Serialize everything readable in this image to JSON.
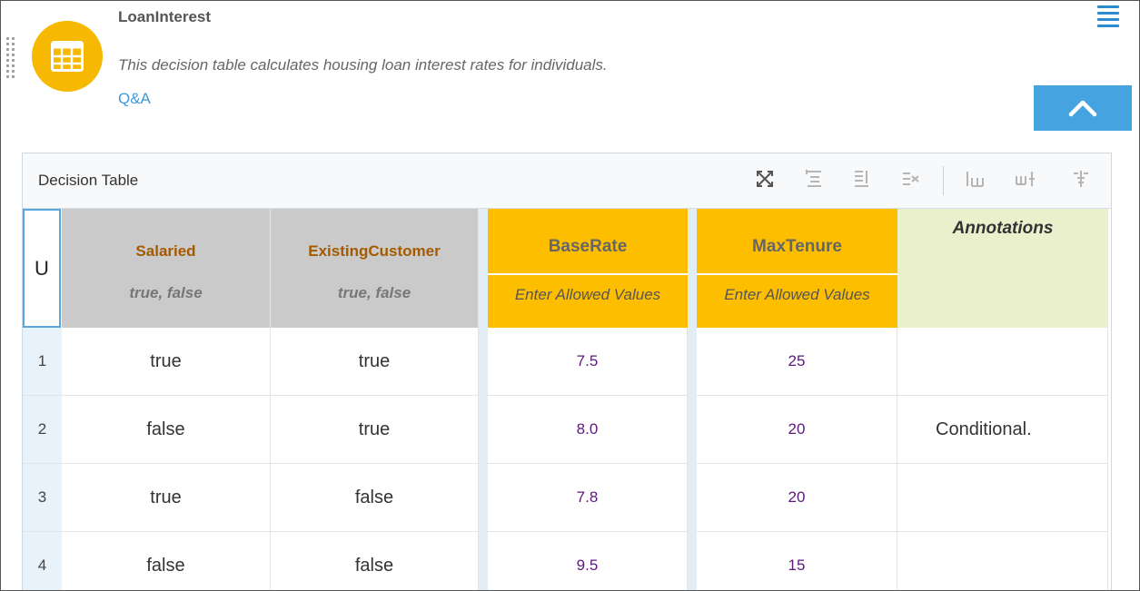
{
  "header": {
    "title": "LoanInterest",
    "description": "This decision table calculates housing loan interest rates for individuals.",
    "link": "Q&A"
  },
  "panel": {
    "title": "Decision Table",
    "toolbar_icons": [
      "fullscreen-icon",
      "add-rule-above-icon",
      "add-rule-below-icon",
      "delete-rule-icon",
      "add-column-left-icon",
      "add-column-right-icon",
      "delete-column-icon"
    ]
  },
  "table": {
    "hit_policy": "U",
    "inputs": [
      {
        "name": "Salaried",
        "values": "true, false"
      },
      {
        "name": "ExistingCustomer",
        "values": "true, false"
      }
    ],
    "outputs": [
      {
        "name": "BaseRate",
        "values": "Enter Allowed Values"
      },
      {
        "name": "MaxTenure",
        "values": "Enter Allowed Values"
      }
    ],
    "annotations_label": "Annotations",
    "rows": [
      {
        "num": "1",
        "salaried": "true",
        "existing": "true",
        "baserate": "7.5",
        "maxtenure": "25",
        "annotation": ""
      },
      {
        "num": "2",
        "salaried": "false",
        "existing": "true",
        "baserate": "8.0",
        "maxtenure": "20",
        "annotation": "Conditional."
      },
      {
        "num": "3",
        "salaried": "true",
        "existing": "false",
        "baserate": "7.8",
        "maxtenure": "20",
        "annotation": ""
      },
      {
        "num": "4",
        "salaried": "false",
        "existing": "false",
        "baserate": "9.5",
        "maxtenure": "15",
        "annotation": ""
      }
    ]
  },
  "colors": {
    "accent": "#45a3e0",
    "avatar": "#f6b800",
    "output_header": "#fdbe00",
    "input_header": "#cacaca",
    "annotation_header": "#eaf0cc",
    "input_name": "#a35a00",
    "output_value": "#5b1a7a"
  }
}
